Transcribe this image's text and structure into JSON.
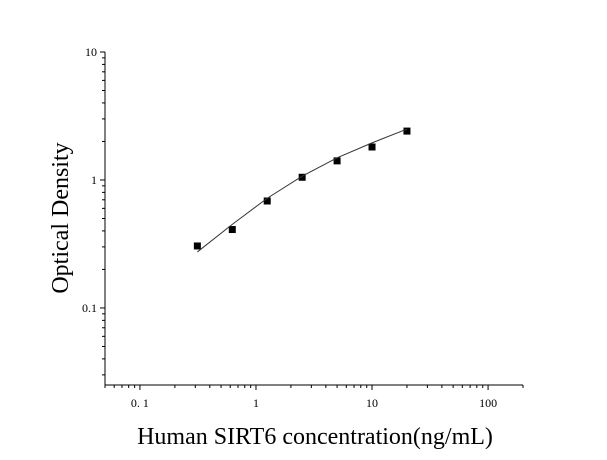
{
  "chart_data": {
    "type": "scatter",
    "x_label": "Human SIRT6 concentration(ng/mL)",
    "y_label": "Optical Density",
    "xscale": "log",
    "yscale": "log",
    "xlim": [
      0.05,
      200
    ],
    "xticks": [
      {
        "value": 0.1,
        "label": "0. 1"
      },
      1,
      10,
      100
    ],
    "ylim": [
      0.025,
      10
    ],
    "yticks": [
      0.1,
      1,
      10
    ],
    "series": [
      {
        "marker": "square",
        "color": "#000000",
        "x": [
          0.3125,
          0.625,
          1.25,
          2.5,
          5,
          10,
          20
        ],
        "values": [
          0.305,
          0.41,
          0.685,
          1.05,
          1.41,
          1.81,
          2.41
        ]
      },
      {
        "line": "fit",
        "color": "#333333",
        "x": [
          0.3125,
          0.625,
          1.25,
          2.5,
          5,
          10,
          20
        ],
        "values": [
          0.274,
          0.45,
          0.72,
          1.07,
          1.49,
          1.95,
          2.5
        ]
      }
    ]
  }
}
